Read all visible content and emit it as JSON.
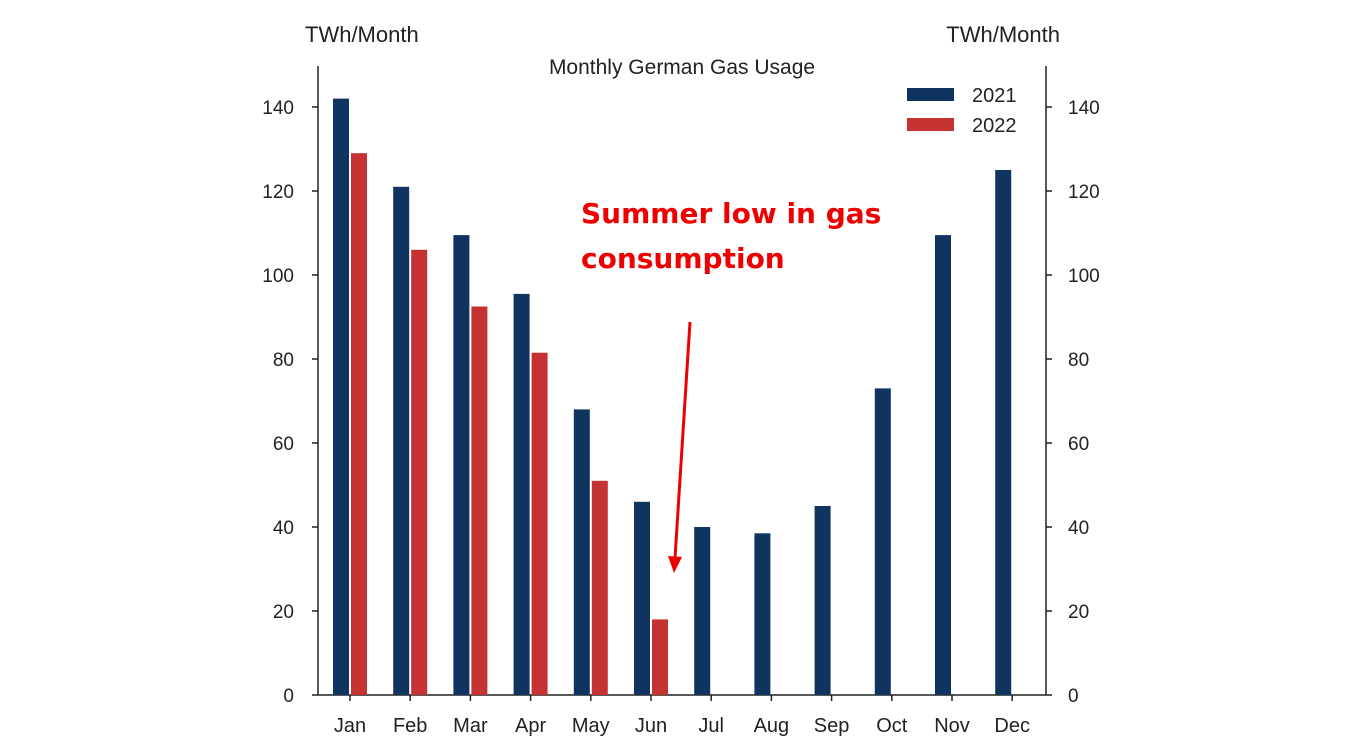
{
  "chart_data": {
    "type": "bar",
    "title": "Monthly German Gas Usage",
    "ylabel_left": "TWh/Month",
    "ylabel_right": "TWh/Month",
    "categories": [
      "Jan",
      "Feb",
      "Mar",
      "Apr",
      "May",
      "Jun",
      "Jul",
      "Aug",
      "Sep",
      "Oct",
      "Nov",
      "Dec"
    ],
    "series": [
      {
        "name": "2021",
        "color": "#0f3460",
        "values": [
          142,
          121,
          109.5,
          95.5,
          68,
          46,
          40,
          38.5,
          45,
          73,
          109.5,
          125
        ]
      },
      {
        "name": "2022",
        "color": "#c53232",
        "values": [
          129,
          106,
          92.5,
          81.5,
          51,
          18,
          null,
          null,
          null,
          null,
          null,
          null
        ]
      }
    ],
    "ylim": [
      0,
      150
    ],
    "yticks": [
      0,
      20,
      40,
      60,
      80,
      100,
      120,
      140
    ],
    "legend_position": "top-right",
    "grid": false,
    "annotation": {
      "lines": [
        "Summer low in gas",
        "consumption"
      ],
      "color": "#ee0000"
    }
  }
}
